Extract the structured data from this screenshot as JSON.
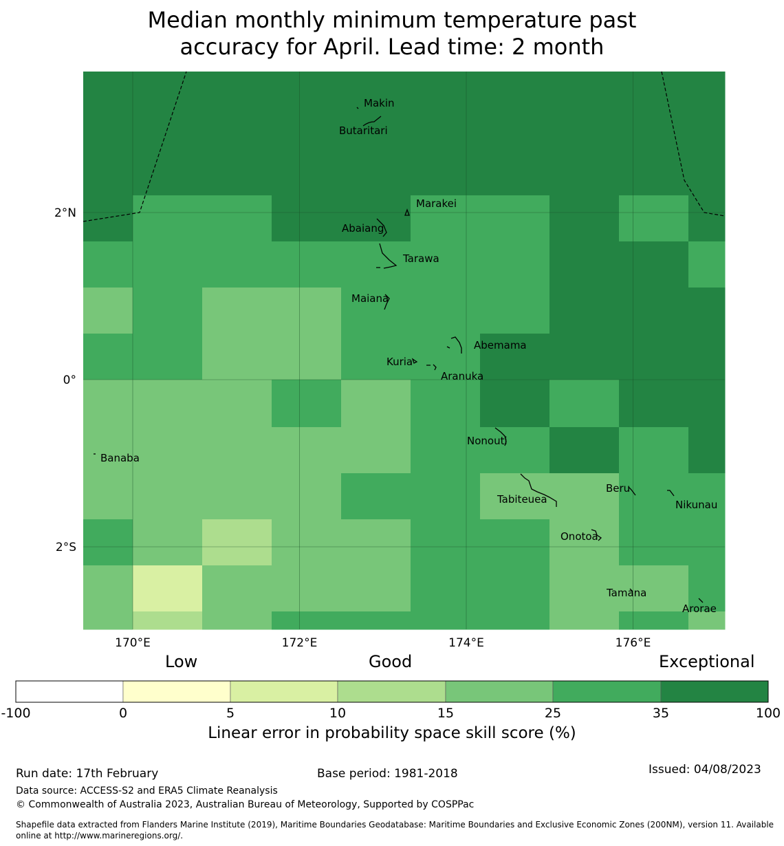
{
  "title_line1": "Median monthly minimum temperature past",
  "title_line2": "accuracy for April. Lead time: 2 month",
  "colorbar": {
    "category_low": "Low",
    "category_good": "Good",
    "category_exceptional": "Exceptional",
    "ticks": [
      "-100",
      "0",
      "5",
      "10",
      "15",
      "25",
      "35",
      "100"
    ],
    "colors": [
      "#ffffff",
      "#ffffcc",
      "#d9f0a3",
      "#addd8e",
      "#78c679",
      "#41ab5d",
      "#238443"
    ],
    "label": "Linear error in probability space skill score (%)"
  },
  "footer": {
    "run_date": "Run date: 17th February",
    "base_period": "Base period: 1981-2018",
    "issued": "Issued: 04/08/2023",
    "data_source": "Data source: ACCESS-S2 and ERA5 Climate Reanalysis",
    "copyright": "© Commonwealth of Australia 2023, Australian Bureau of Meteorology, Supported by COSPPac",
    "shapefile": "Shapefile data extracted from Flanders Marine Institute (2019), Maritime Boundaries Geodatabase: Maritime Boundaries and Exclusive Economic Zones (200NM), version 11. Available online at http://www.marineregions.org/."
  },
  "chart_data": {
    "type": "heatmap",
    "title": "Median monthly minimum temperature past accuracy for April. Lead time: 2 month",
    "xlabel": "",
    "ylabel": "",
    "x_range": [
      169.4,
      177.1
    ],
    "y_range": [
      -3.0,
      3.7
    ],
    "cell_size_deg": 0.833,
    "x_ticks": [
      {
        "value": 170,
        "label": "170°E"
      },
      {
        "value": 172,
        "label": "172°E"
      },
      {
        "value": 174,
        "label": "174°E"
      },
      {
        "value": 176,
        "label": "176°E"
      }
    ],
    "y_ticks": [
      {
        "value": 2,
        "label": "2°N"
      },
      {
        "value": 0,
        "label": "0°"
      },
      {
        "value": -2,
        "label": "2°S"
      }
    ],
    "grid": true,
    "category_legend": [
      "0-5",
      "5-10",
      "10-15",
      "15-25",
      "25-35",
      "35-100"
    ],
    "cells_note": "rows north to south, columns west to east; values = colour class index (6 = 35-100, 5 = 25-35, 4 = 15-25, 3 = 10-15, 2 = 5-10)",
    "cells": [
      [
        6,
        6,
        6,
        6,
        6,
        6,
        6,
        6,
        6,
        6
      ],
      [
        6,
        6,
        6,
        6,
        6,
        6,
        6,
        6,
        6,
        6
      ],
      [
        6,
        5,
        5,
        6,
        6,
        5,
        5,
        6,
        5,
        6
      ],
      [
        5,
        5,
        5,
        5,
        5,
        5,
        5,
        6,
        6,
        5
      ],
      [
        4,
        5,
        4,
        4,
        5,
        5,
        5,
        6,
        6,
        6
      ],
      [
        5,
        5,
        4,
        4,
        5,
        5,
        6,
        6,
        6,
        6
      ],
      [
        4,
        4,
        4,
        5,
        4,
        5,
        6,
        5,
        6,
        6
      ],
      [
        4,
        4,
        4,
        4,
        4,
        5,
        5,
        6,
        5,
        6
      ],
      [
        4,
        4,
        4,
        4,
        5,
        5,
        4,
        4,
        5,
        5
      ],
      [
        5,
        4,
        3,
        4,
        4,
        5,
        5,
        4,
        5,
        5
      ],
      [
        4,
        2,
        4,
        4,
        4,
        5,
        5,
        4,
        4,
        5
      ],
      [
        4,
        3,
        4,
        5,
        5,
        5,
        5,
        4,
        5,
        4
      ]
    ],
    "islands": [
      {
        "name": "Makin",
        "lon": 172.95,
        "lat": 3.35
      },
      {
        "name": "Butaritari",
        "lon": 172.8,
        "lat": 3.05
      },
      {
        "name": "Marakei",
        "lon": 173.3,
        "lat": 2.0
      },
      {
        "name": "Abaiang",
        "lon": 173.0,
        "lat": 1.85
      },
      {
        "name": "Tarawa",
        "lon": 173.1,
        "lat": 1.45
      },
      {
        "name": "Maiana",
        "lon": 173.0,
        "lat": 0.95
      },
      {
        "name": "Abemama",
        "lon": 173.9,
        "lat": 0.4
      },
      {
        "name": "Kuria",
        "lon": 173.4,
        "lat": 0.22
      },
      {
        "name": "Aranuka",
        "lon": 173.6,
        "lat": 0.15
      },
      {
        "name": "Nonouti",
        "lon": 174.4,
        "lat": -0.65
      },
      {
        "name": "Banaba",
        "lon": 169.55,
        "lat": -0.87
      },
      {
        "name": "Tabiteuea",
        "lon": 174.8,
        "lat": -1.3
      },
      {
        "name": "Beru",
        "lon": 176.0,
        "lat": -1.35
      },
      {
        "name": "Nikunau",
        "lon": 176.45,
        "lat": -1.35
      },
      {
        "name": "Onotoa",
        "lon": 175.55,
        "lat": -1.8
      },
      {
        "name": "Tamana",
        "lon": 176.0,
        "lat": -2.5
      },
      {
        "name": "Arorae",
        "lon": 176.8,
        "lat": -2.65
      }
    ]
  }
}
